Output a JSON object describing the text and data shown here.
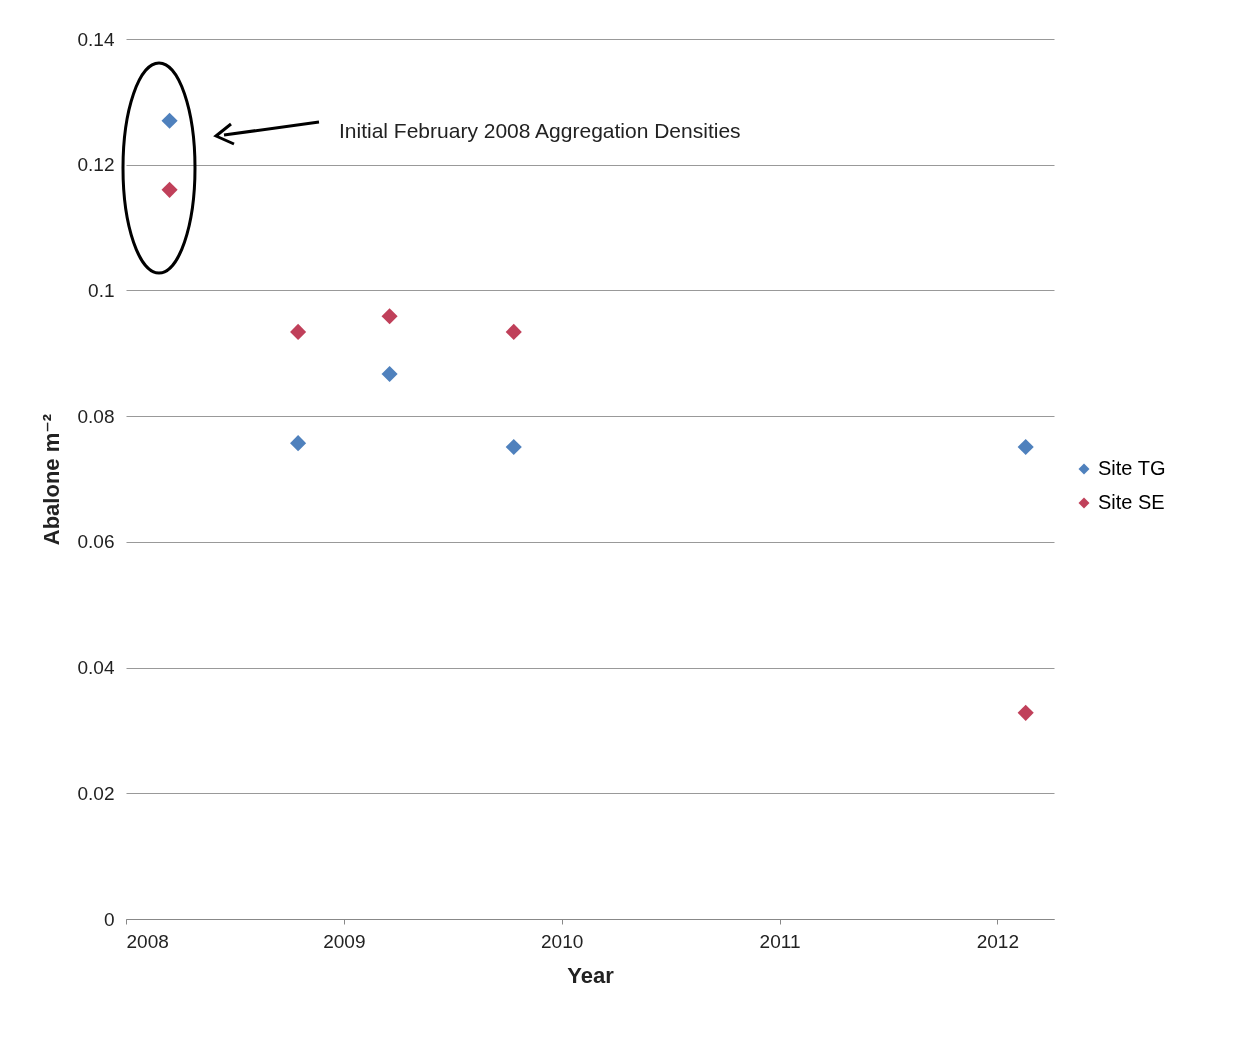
{
  "chart_data": {
    "type": "scatter",
    "xlabel": "Year",
    "ylabel": "Abalone  m⁻²",
    "xlim": [
      2008,
      2012.26
    ],
    "xticks": [
      2008,
      2009,
      2010,
      2011,
      2012
    ],
    "ylim": [
      0,
      0.14
    ],
    "yticks": [
      0,
      0.02,
      0.04,
      0.06,
      0.08,
      0.1,
      0.12,
      0.14
    ],
    "series": [
      {
        "name": "Site TG",
        "color": "#4f81bd",
        "x": [
          2008.2,
          2008.79,
          2009.21,
          2009.78,
          2012.13
        ],
        "values": [
          0.127,
          0.0757,
          0.0867,
          0.0751,
          0.0751
        ]
      },
      {
        "name": "Site SE",
        "color": "#c0405a",
        "x": [
          2008.2,
          2008.79,
          2009.21,
          2009.78,
          2012.13
        ],
        "values": [
          0.116,
          0.0934,
          0.0959,
          0.0934,
          0.0328
        ]
      }
    ],
    "annotations": [
      "Initial  February 2008 Aggregation Densities"
    ],
    "marker": "diamond",
    "grid": "y",
    "legend": "right"
  }
}
